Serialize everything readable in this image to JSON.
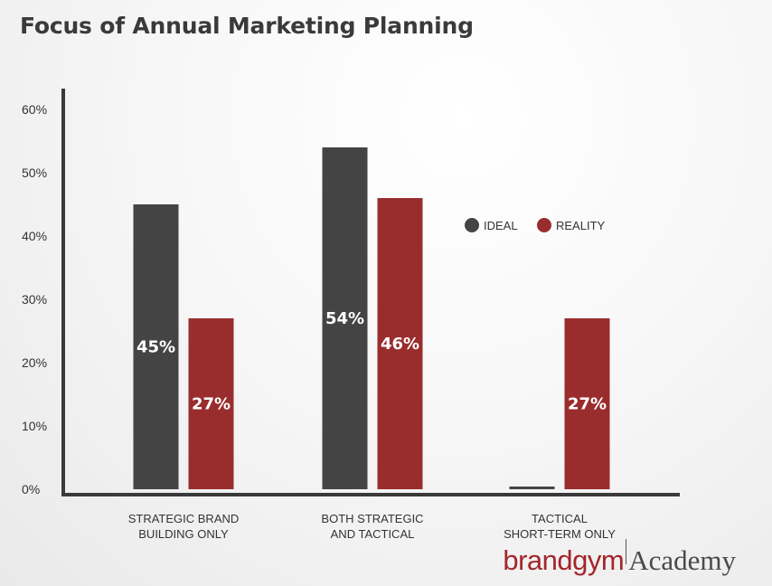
{
  "chart_data": {
    "type": "bar",
    "title": "Focus of Annual Marketing Planning",
    "categories": [
      [
        "STRATEGIC BRAND",
        "BUILDING ONLY"
      ],
      [
        "BOTH STRATEGIC",
        "AND TACTICAL"
      ],
      [
        "TACTICAL",
        "SHORT-TERM ONLY"
      ]
    ],
    "series": [
      {
        "name": "IDEAL",
        "color": "#444444",
        "values": [
          45,
          54,
          0
        ],
        "labels": [
          "45%",
          "54%",
          ""
        ]
      },
      {
        "name": "REALITY",
        "color": "#992d2e",
        "values": [
          27,
          46,
          27
        ],
        "labels": [
          "27%",
          "46%",
          "27%"
        ]
      }
    ],
    "yticks": [
      "0%",
      "10%",
      "20%",
      "30%",
      "40%",
      "50%",
      "60%"
    ],
    "ylim": [
      0,
      63
    ],
    "legend": "right",
    "grid": false
  },
  "brand": {
    "part1": "brandgym",
    "part2": "Academy"
  }
}
